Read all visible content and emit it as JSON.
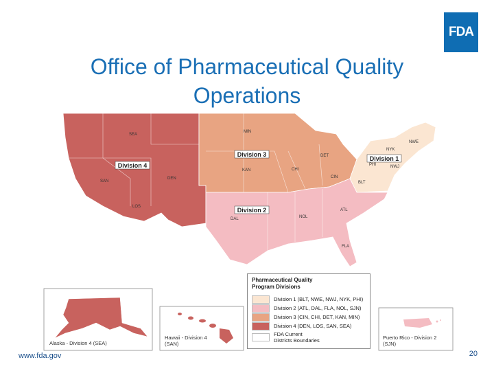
{
  "logo": {
    "text": "FDA"
  },
  "title": "Office of Pharmaceutical Quality Operations",
  "legend": {
    "title_line1": "Pharmaceutical Quality",
    "title_line2": "Program Divisions",
    "entries": [
      {
        "label": "Division 1 (BLT, NWE, NWJ, NYK, PHI)",
        "color": "#fbe6d2"
      },
      {
        "label": "Division 2 (ATL, DAL, FLA, NOL, SJN)",
        "color": "#f4bcc2"
      },
      {
        "label": "Division 3 (CIN, CHI, DET, KAN, MIN)",
        "color": "#e8a482"
      },
      {
        "label": "Division 4 (DEN, LOS, SAN, SEA)",
        "color": "#c8625e"
      },
      {
        "label_line1": "FDA Current",
        "label_line2": "Districts Boundaries",
        "color": "#ffffff"
      }
    ]
  },
  "map": {
    "division_labels": [
      "Division 1",
      "Division 2",
      "Division 3",
      "Division 4"
    ],
    "districts": [
      "SEA",
      "SAN",
      "LOS",
      "DEN",
      "MIN",
      "KAN",
      "CHI",
      "DET",
      "CIN",
      "NYK",
      "NWE",
      "PHI",
      "NWJ",
      "BLT",
      "DAL",
      "NOL",
      "ATL",
      "FLA"
    ]
  },
  "insets": {
    "alaska": "Alaska - Division 4 (SEA)",
    "hawaii_line1": "Hawaii - Division 4",
    "hawaii_line2": "(SAN)",
    "puerto_rico_line1": "Puerto Rico - Division 2",
    "puerto_rico_line2": "(SJN)"
  },
  "footer": {
    "url": "www.fda.gov",
    "page": "20"
  }
}
